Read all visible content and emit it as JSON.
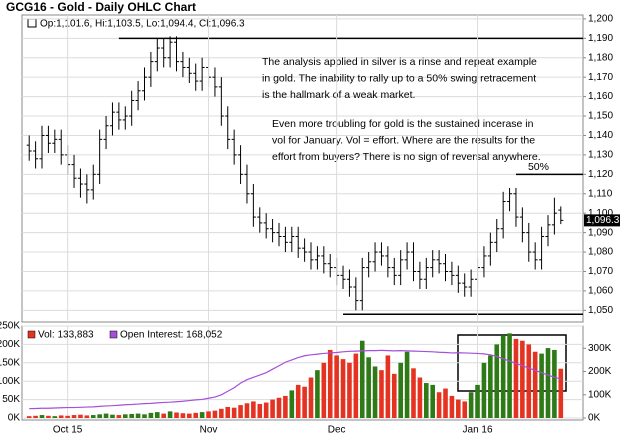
{
  "chart_data": [
    {
      "type": "ohlc",
      "title": "GCG16 - Gold - Daily OHLC Chart",
      "info": "Op:1,101.6, Hi:1,103.5, Lo:1,094.4, Cl:1,096.3",
      "last_label": "1,096.3",
      "color": "#000000",
      "grid": true,
      "open": [
        1135,
        1132,
        1128,
        1140,
        1136,
        1138,
        1130,
        1125,
        1118,
        1115,
        1112,
        1120,
        1138,
        1145,
        1152,
        1148,
        1150,
        1158,
        1163,
        1170,
        1178,
        1185,
        1180,
        1188,
        1178,
        1175,
        1172,
        1168,
        1175,
        1170,
        1165,
        1150,
        1138,
        1130,
        1120,
        1110,
        1098,
        1095,
        1092,
        1090,
        1088,
        1085,
        1088,
        1082,
        1080,
        1076,
        1078,
        1074,
        1072,
        1068,
        1066,
        1062,
        1055,
        1072,
        1075,
        1080,
        1078,
        1072,
        1068,
        1076,
        1080,
        1070,
        1066,
        1072,
        1076,
        1074,
        1070,
        1068,
        1064,
        1062,
        1066,
        1072,
        1078,
        1085,
        1092,
        1106,
        1110,
        1098,
        1090,
        1080,
        1076,
        1088,
        1094,
        1101.6
      ],
      "high": [
        1140,
        1137,
        1145,
        1145,
        1143,
        1143,
        1135,
        1130,
        1123,
        1120,
        1125,
        1143,
        1150,
        1157,
        1157,
        1155,
        1163,
        1168,
        1175,
        1183,
        1190,
        1190,
        1191,
        1191,
        1183,
        1180,
        1177,
        1180,
        1180,
        1175,
        1170,
        1155,
        1143,
        1135,
        1125,
        1115,
        1103,
        1100,
        1097,
        1095,
        1093,
        1093,
        1093,
        1087,
        1085,
        1083,
        1083,
        1079,
        1077,
        1073,
        1071,
        1067,
        1077,
        1080,
        1085,
        1085,
        1083,
        1077,
        1081,
        1085,
        1085,
        1075,
        1077,
        1081,
        1081,
        1079,
        1075,
        1073,
        1069,
        1071,
        1077,
        1083,
        1090,
        1097,
        1111,
        1113,
        1113,
        1103,
        1095,
        1085,
        1093,
        1099,
        1108,
        1103.5
      ],
      "low": [
        1127,
        1123,
        1123,
        1131,
        1131,
        1125,
        1120,
        1113,
        1108,
        1105,
        1107,
        1115,
        1133,
        1140,
        1143,
        1143,
        1145,
        1153,
        1158,
        1165,
        1173,
        1175,
        1175,
        1173,
        1170,
        1167,
        1163,
        1163,
        1165,
        1160,
        1145,
        1133,
        1125,
        1115,
        1105,
        1093,
        1090,
        1087,
        1085,
        1083,
        1080,
        1080,
        1077,
        1075,
        1071,
        1071,
        1069,
        1067,
        1063,
        1061,
        1057,
        1050,
        1050,
        1067,
        1070,
        1073,
        1067,
        1063,
        1063,
        1071,
        1065,
        1061,
        1061,
        1067,
        1069,
        1065,
        1063,
        1059,
        1057,
        1057,
        1061,
        1067,
        1073,
        1080,
        1087,
        1101,
        1093,
        1085,
        1075,
        1071,
        1071,
        1083,
        1089,
        1094.4
      ],
      "close": [
        1132,
        1128,
        1140,
        1136,
        1138,
        1130,
        1125,
        1118,
        1115,
        1112,
        1120,
        1138,
        1145,
        1152,
        1148,
        1150,
        1158,
        1163,
        1170,
        1178,
        1185,
        1180,
        1188,
        1178,
        1175,
        1172,
        1168,
        1175,
        1170,
        1165,
        1150,
        1138,
        1130,
        1120,
        1110,
        1098,
        1095,
        1092,
        1090,
        1088,
        1085,
        1088,
        1082,
        1080,
        1076,
        1078,
        1074,
        1072,
        1068,
        1066,
        1062,
        1055,
        1072,
        1075,
        1080,
        1078,
        1072,
        1068,
        1076,
        1080,
        1070,
        1066,
        1072,
        1076,
        1074,
        1070,
        1068,
        1064,
        1062,
        1066,
        1072,
        1078,
        1085,
        1092,
        1106,
        1110,
        1098,
        1090,
        1080,
        1076,
        1088,
        1094,
        1100,
        1096.3
      ],
      "ylim": [
        1044,
        1202
      ],
      "yticks": [
        {
          "value": 1050,
          "label": "1,050"
        },
        {
          "value": 1060,
          "label": "1,060"
        },
        {
          "value": 1070,
          "label": "1,070"
        },
        {
          "value": 1080,
          "label": "1,080"
        },
        {
          "value": 1090,
          "label": "1,090"
        },
        {
          "value": 1100,
          "label": "1,100"
        },
        {
          "value": 1110,
          "label": "1,110"
        },
        {
          "value": 1120,
          "label": "1,120"
        },
        {
          "value": 1130,
          "label": "1,130"
        },
        {
          "value": 1140,
          "label": "1,140"
        },
        {
          "value": 1150,
          "label": "1,150"
        },
        {
          "value": 1160,
          "label": "1,160"
        },
        {
          "value": 1170,
          "label": "1,170"
        },
        {
          "value": 1180,
          "label": "1,180"
        },
        {
          "value": 1190,
          "label": "1,190"
        },
        {
          "value": 1200,
          "label": "1,200"
        }
      ],
      "hlines": [
        {
          "value": 1190,
          "start": 14
        },
        {
          "value": 1048,
          "start": 49
        },
        {
          "value": 1120,
          "start": 76,
          "label": "50%"
        }
      ],
      "annotations": [
        [
          "The analysis applied in silver is a rinse and repeat example",
          "in gold.  The inability to rally up to a 50% swing retracement",
          "is the hallmark of a weak market."
        ],
        [
          "Even more troubling for gold is the sustained incerase in",
          "vol for January.  Vol = effort.  Where are the results for the",
          "effort from buyers?  There is no sign of reversal anywhere."
        ]
      ]
    },
    {
      "type": "bar",
      "categories": [
        null,
        null,
        null,
        null,
        null,
        null,
        "Oct 15",
        null,
        null,
        null,
        null,
        null,
        null,
        null,
        null,
        null,
        null,
        null,
        null,
        null,
        null,
        null,
        null,
        null,
        null,
        null,
        null,
        null,
        "Nov",
        null,
        null,
        null,
        null,
        null,
        null,
        null,
        null,
        null,
        null,
        null,
        null,
        null,
        null,
        null,
        null,
        null,
        null,
        null,
        "Dec",
        null,
        null,
        null,
        null,
        null,
        null,
        null,
        null,
        null,
        null,
        null,
        null,
        null,
        null,
        null,
        null,
        null,
        null,
        null,
        null,
        null,
        "Jan 16",
        null,
        null,
        null,
        null,
        null,
        null,
        null,
        null,
        null,
        null,
        null,
        null,
        null
      ],
      "series": [
        {
          "name": "Vol: 133,883",
          "color": "#e53322",
          "up_color": "#2d7a16",
          "values": [
            5000,
            6000,
            8000,
            6000,
            5000,
            7000,
            6000,
            8000,
            9000,
            7000,
            8000,
            10000,
            12000,
            9000,
            8000,
            10000,
            11000,
            12000,
            10000,
            14000,
            16000,
            12000,
            18000,
            15000,
            13000,
            12000,
            14000,
            16000,
            18000,
            20000,
            25000,
            30000,
            28000,
            35000,
            40000,
            45000,
            38000,
            42000,
            50000,
            55000,
            60000,
            75000,
            90000,
            85000,
            110000,
            130000,
            150000,
            185000,
            170000,
            160000,
            150000,
            175000,
            210000,
            165000,
            140000,
            130000,
            170000,
            120000,
            150000,
            180000,
            135000,
            110000,
            95000,
            90000,
            70000,
            80000,
            60000,
            50000,
            45000,
            70000,
            90000,
            150000,
            170000,
            200000,
            225000,
            230000,
            215000,
            210000,
            200000,
            180000,
            175000,
            190000,
            185000,
            133883
          ]
        },
        {
          "name": "Open Interest: 168,052",
          "color": "#a64fd8",
          "axis": "y2",
          "values": [
            40000,
            41000,
            42000,
            42000,
            43000,
            44000,
            45000,
            45000,
            46000,
            47000,
            48000,
            50000,
            52000,
            53000,
            55000,
            57000,
            58000,
            60000,
            62000,
            63000,
            65000,
            67000,
            68000,
            70000,
            72000,
            75000,
            78000,
            80000,
            85000,
            90000,
            100000,
            115000,
            130000,
            150000,
            165000,
            175000,
            185000,
            195000,
            210000,
            225000,
            240000,
            250000,
            260000,
            268000,
            272000,
            275000,
            278000,
            280000,
            282000,
            285000,
            287000,
            288000,
            289000,
            290000,
            290000,
            291000,
            290000,
            289000,
            290000,
            289000,
            288000,
            287000,
            286000,
            285000,
            283000,
            282000,
            280000,
            281000,
            280000,
            279000,
            278000,
            276000,
            272000,
            265000,
            255000,
            245000,
            235000,
            225000,
            215000,
            205000,
            195000,
            185000,
            175000,
            168052
          ]
        }
      ],
      "ylim": [
        0,
        250000
      ],
      "yticks": [
        {
          "value": 0,
          "label": "0K"
        },
        {
          "value": 50000,
          "label": "50K"
        },
        {
          "value": 100000,
          "label": "100K"
        },
        {
          "value": 150000,
          "label": "150K"
        },
        {
          "value": 200000,
          "label": "200K"
        },
        {
          "value": 250000,
          "label": "250K"
        }
      ],
      "y2lim": [
        0,
        396000
      ],
      "y2ticks": [
        {
          "value": 0,
          "label": "0K"
        },
        {
          "value": 100000,
          "label": "100K"
        },
        {
          "value": 200000,
          "label": "200K"
        },
        {
          "value": 300000,
          "label": "300K"
        }
      ],
      "grid": true
    }
  ]
}
